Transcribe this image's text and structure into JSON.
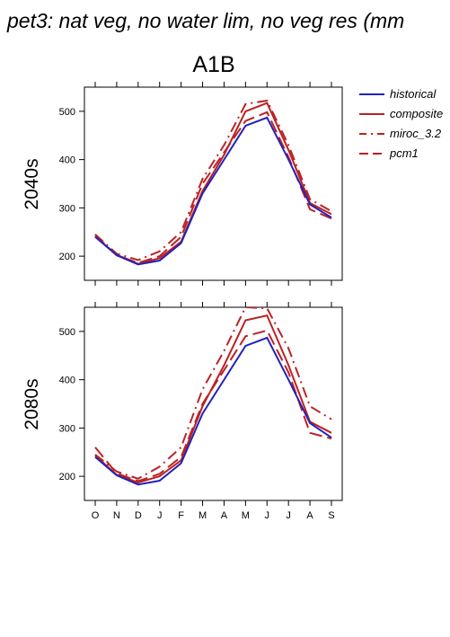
{
  "page_title": "pet3: nat veg, no water lim, no veg res (mm",
  "chart_data": {
    "type": "line",
    "title": "A1B",
    "months": [
      "O",
      "N",
      "D",
      "J",
      "F",
      "M",
      "A",
      "M",
      "J",
      "J",
      "A",
      "S"
    ],
    "yticks": [
      200,
      300,
      400,
      500
    ],
    "legend_position": "right",
    "legend": [
      {
        "name": "historical",
        "color": "#2222bb",
        "dash": "solid"
      },
      {
        "name": "composite",
        "color": "#bb2222",
        "dash": "solid"
      },
      {
        "name": "miroc_3.2",
        "color": "#bb2222",
        "dash": "dashdot"
      },
      {
        "name": "pcm1",
        "color": "#bb2222",
        "dash": "longdash"
      }
    ],
    "panels": [
      {
        "label": "2040s",
        "ylim": [
          150,
          550
        ],
        "series": [
          {
            "name": "historical",
            "values": [
              240,
              202,
              183,
              191,
              227,
              330,
              400,
              470,
              487,
              400,
              307,
              280
            ]
          },
          {
            "name": "composite",
            "values": [
              240,
              203,
              184,
              196,
              230,
              335,
              410,
              500,
              517,
              420,
              310,
              287
            ]
          },
          {
            "name": "miroc_3.2",
            "values": [
              245,
              205,
              192,
              210,
              250,
              360,
              430,
              515,
              522,
              430,
              318,
              293
            ]
          },
          {
            "name": "pcm1",
            "values": [
              243,
              202,
              186,
              200,
              240,
              350,
              415,
              480,
              498,
              405,
              297,
              278
            ]
          }
        ]
      },
      {
        "label": "2080s",
        "ylim": [
          150,
          550
        ],
        "series": [
          {
            "name": "historical",
            "values": [
              240,
              202,
              183,
              191,
              227,
              330,
              400,
              470,
              487,
              400,
              310,
              280
            ]
          },
          {
            "name": "composite",
            "values": [
              243,
              203,
              187,
              200,
              233,
              345,
              430,
              523,
              533,
              430,
              313,
              290
            ]
          },
          {
            "name": "miroc_3.2",
            "values": [
              245,
              210,
              195,
              220,
              260,
              380,
              460,
              550,
              548,
              465,
              345,
              318
            ]
          },
          {
            "name": "pcm1",
            "values": [
              260,
              206,
              190,
              205,
              240,
              350,
              420,
              490,
              502,
              415,
              290,
              278
            ]
          }
        ]
      }
    ]
  }
}
